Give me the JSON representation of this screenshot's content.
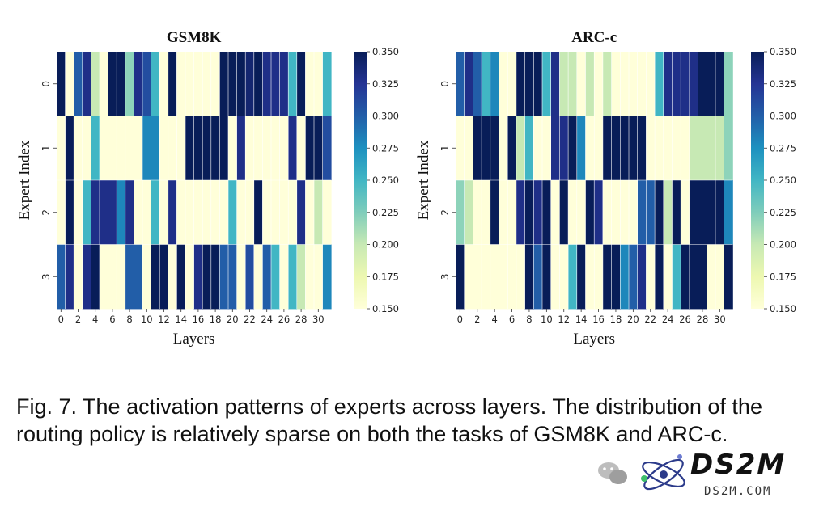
{
  "chart_data": [
    {
      "type": "heatmap",
      "title": "GSM8K",
      "xlabel": "Layers",
      "ylabel": "Expert Index",
      "y_categories": [
        "0",
        "1",
        "2",
        "3"
      ],
      "x_tick_labels": [
        "0",
        "2",
        "4",
        "6",
        "8",
        "10",
        "12",
        "14",
        "16",
        "18",
        "20",
        "22",
        "24",
        "26",
        "28",
        "30"
      ],
      "colorbar": {
        "min": 0.15,
        "max": 0.35,
        "ticks": [
          "0.350",
          "0.325",
          "0.300",
          "0.275",
          "0.250",
          "0.225",
          "0.200",
          "0.175",
          "0.150"
        ]
      },
      "values": [
        [
          0.35,
          0.15,
          0.3,
          0.33,
          0.2,
          0.15,
          0.35,
          0.35,
          0.22,
          0.33,
          0.31,
          0.25,
          0.15,
          0.35,
          0.15,
          0.15,
          0.15,
          0.15,
          0.15,
          0.35,
          0.35,
          0.35,
          0.34,
          0.35,
          0.33,
          0.33,
          0.33,
          0.25,
          0.35,
          0.15,
          0.15,
          0.25
        ],
        [
          0.15,
          0.35,
          0.15,
          0.15,
          0.25,
          0.15,
          0.15,
          0.15,
          0.15,
          0.15,
          0.28,
          0.28,
          0.15,
          0.15,
          0.15,
          0.35,
          0.35,
          0.35,
          0.35,
          0.35,
          0.15,
          0.33,
          0.15,
          0.15,
          0.15,
          0.15,
          0.15,
          0.33,
          0.15,
          0.35,
          0.35,
          0.31
        ],
        [
          0.15,
          0.35,
          0.15,
          0.25,
          0.33,
          0.33,
          0.33,
          0.28,
          0.33,
          0.15,
          0.15,
          0.25,
          0.15,
          0.33,
          0.15,
          0.15,
          0.15,
          0.15,
          0.15,
          0.15,
          0.25,
          0.15,
          0.15,
          0.35,
          0.15,
          0.15,
          0.15,
          0.15,
          0.33,
          0.15,
          0.2,
          0.15
        ],
        [
          0.3,
          0.33,
          0.15,
          0.33,
          0.35,
          0.15,
          0.15,
          0.15,
          0.3,
          0.3,
          0.15,
          0.35,
          0.35,
          0.15,
          0.35,
          0.15,
          0.33,
          0.35,
          0.35,
          0.3,
          0.3,
          0.15,
          0.31,
          0.15,
          0.3,
          0.25,
          0.15,
          0.25,
          0.2,
          0.15,
          0.15,
          0.28
        ]
      ]
    },
    {
      "type": "heatmap",
      "title": "ARC-c",
      "xlabel": "Layers",
      "ylabel": "Expert Index",
      "y_categories": [
        "0",
        "1",
        "2",
        "3"
      ],
      "x_tick_labels": [
        "0",
        "2",
        "4",
        "6",
        "8",
        "10",
        "12",
        "14",
        "16",
        "18",
        "20",
        "22",
        "24",
        "26",
        "28",
        "30"
      ],
      "colorbar": {
        "min": 0.15,
        "max": 0.35,
        "ticks": [
          "0.350",
          "0.325",
          "0.300",
          "0.275",
          "0.250",
          "0.225",
          "0.200",
          "0.175",
          "0.150"
        ]
      },
      "values": [
        [
          0.3,
          0.33,
          0.3,
          0.25,
          0.28,
          0.15,
          0.15,
          0.35,
          0.35,
          0.35,
          0.25,
          0.33,
          0.2,
          0.2,
          0.15,
          0.2,
          0.15,
          0.2,
          0.15,
          0.15,
          0.15,
          0.15,
          0.15,
          0.25,
          0.33,
          0.33,
          0.33,
          0.33,
          0.35,
          0.35,
          0.35,
          0.22
        ],
        [
          0.15,
          0.15,
          0.35,
          0.35,
          0.35,
          0.15,
          0.35,
          0.2,
          0.25,
          0.15,
          0.15,
          0.33,
          0.33,
          0.35,
          0.28,
          0.15,
          0.15,
          0.35,
          0.35,
          0.35,
          0.35,
          0.35,
          0.15,
          0.15,
          0.15,
          0.15,
          0.15,
          0.2,
          0.2,
          0.2,
          0.2,
          0.22
        ],
        [
          0.22,
          0.2,
          0.15,
          0.15,
          0.35,
          0.15,
          0.15,
          0.33,
          0.35,
          0.33,
          0.35,
          0.15,
          0.35,
          0.15,
          0.15,
          0.35,
          0.33,
          0.15,
          0.15,
          0.15,
          0.15,
          0.3,
          0.3,
          0.35,
          0.2,
          0.35,
          0.15,
          0.35,
          0.35,
          0.35,
          0.35,
          0.28
        ],
        [
          0.35,
          0.15,
          0.15,
          0.15,
          0.15,
          0.15,
          0.15,
          0.15,
          0.35,
          0.3,
          0.35,
          0.15,
          0.15,
          0.25,
          0.35,
          0.15,
          0.15,
          0.35,
          0.35,
          0.28,
          0.3,
          0.33,
          0.15,
          0.35,
          0.15,
          0.25,
          0.35,
          0.35,
          0.35,
          0.15,
          0.15,
          0.35
        ]
      ]
    }
  ],
  "caption": "Fig. 7. The activation patterns of experts across layers. The distribution of the routing policy is relatively sparse on both the tasks of GSM8K and ARC-c.",
  "watermark": {
    "text1": "DS2M",
    "text2": "DS2M.COM",
    "colors": {
      "orbit": "#2b3a8a",
      "dot": "#3fbf6a"
    }
  },
  "colormap": {
    "stops": [
      [
        0.0,
        "#ffffd9"
      ],
      [
        0.125,
        "#edf8b1"
      ],
      [
        0.25,
        "#c7e9b4"
      ],
      [
        0.375,
        "#7fcdbb"
      ],
      [
        0.5,
        "#41b6c4"
      ],
      [
        0.625,
        "#1d91c0"
      ],
      [
        0.75,
        "#225ea8"
      ],
      [
        0.875,
        "#253494"
      ],
      [
        1.0,
        "#081d58"
      ]
    ]
  }
}
